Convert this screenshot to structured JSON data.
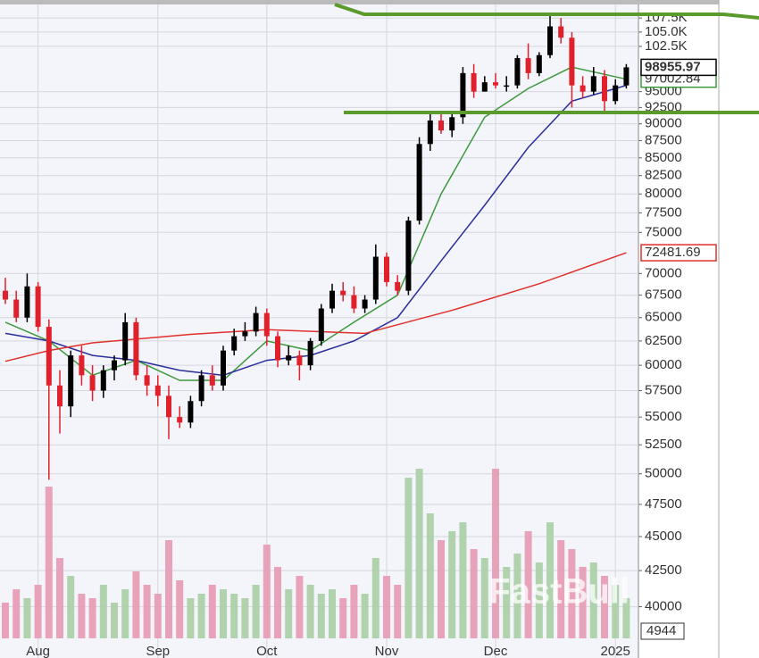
{
  "chart_data": {
    "type": "candlestick",
    "categories": [
      null,
      null,
      null,
      "Aug",
      null,
      null,
      null,
      null,
      null,
      null,
      null,
      null,
      null,
      null,
      "Sep",
      null,
      null,
      null,
      null,
      null,
      null,
      null,
      null,
      null,
      "Oct",
      null,
      null,
      null,
      null,
      null,
      null,
      null,
      null,
      null,
      null,
      "Nov",
      null,
      null,
      null,
      null,
      null,
      null,
      null,
      null,
      null,
      "Dec",
      null,
      null,
      null,
      null,
      null,
      null,
      null,
      null,
      null,
      null,
      "2025",
      null
    ],
    "open": [
      68000,
      67000,
      65000,
      68500,
      64000,
      58000,
      56000,
      61000,
      59000,
      57500,
      59500,
      60500,
      64500,
      59000,
      58000,
      57000,
      55000,
      54500,
      56500,
      59000,
      58000,
      61500,
      63000,
      63500,
      65500,
      63000,
      60500,
      61000,
      60000,
      62500,
      66000,
      68000,
      67500,
      66000,
      67000,
      72000,
      69000,
      68000,
      76500,
      87000,
      90500,
      89000,
      91000,
      98000,
      95000,
      96500,
      96000,
      96000,
      100500,
      98000,
      101000,
      106000,
      104000,
      96000,
      95000,
      97500,
      93500,
      96000
    ],
    "high": [
      69500,
      68000,
      70000,
      69000,
      64800,
      59500,
      61500,
      62000,
      60000,
      60000,
      61000,
      65500,
      65000,
      60000,
      59000,
      58000,
      56000,
      57000,
      59500,
      60000,
      62000,
      63800,
      64500,
      66200,
      66000,
      63500,
      62000,
      61500,
      62800,
      66500,
      68800,
      69000,
      68500,
      67500,
      73500,
      72500,
      69800,
      77000,
      88000,
      92000,
      91500,
      92000,
      99000,
      99500,
      97500,
      98000,
      97500,
      101000,
      103000,
      101500,
      108000,
      107500,
      105000,
      97500,
      99000,
      98500,
      97000,
      99500
    ],
    "low": [
      66500,
      64500,
      64500,
      63500,
      49500,
      53500,
      55000,
      58000,
      56500,
      56800,
      58500,
      60000,
      58500,
      57000,
      56000,
      53000,
      54000,
      54000,
      56000,
      57500,
      57500,
      61000,
      62500,
      63000,
      62000,
      59800,
      60000,
      58500,
      59500,
      62000,
      65500,
      66800,
      65500,
      65500,
      66500,
      68500,
      67500,
      67500,
      76000,
      86000,
      88500,
      88000,
      90000,
      94000,
      95000,
      95500,
      95000,
      95500,
      97000,
      97500,
      100500,
      103000,
      92500,
      94000,
      94500,
      91500,
      93000,
      95500
    ],
    "close": [
      67000,
      65000,
      68500,
      64000,
      58000,
      56000,
      61000,
      59000,
      57500,
      59500,
      60500,
      64500,
      59000,
      58000,
      57000,
      55000,
      54500,
      56500,
      59000,
      58000,
      61500,
      63000,
      63500,
      65500,
      63000,
      60500,
      61000,
      60000,
      62500,
      66000,
      68000,
      67500,
      66000,
      67000,
      72000,
      69000,
      68000,
      76500,
      87000,
      90500,
      89000,
      91000,
      98000,
      95000,
      96500,
      96000,
      96000,
      100500,
      98000,
      101000,
      106000,
      104000,
      96000,
      95000,
      97500,
      93500,
      96000,
      98955.97
    ],
    "volume": [
      40,
      55,
      45,
      60,
      170,
      90,
      70,
      50,
      45,
      60,
      40,
      55,
      75,
      60,
      50,
      110,
      65,
      45,
      50,
      60,
      55,
      50,
      45,
      60,
      105,
      80,
      55,
      70,
      60,
      50,
      55,
      45,
      60,
      50,
      90,
      70,
      60,
      180,
      190,
      140,
      110,
      120,
      130,
      100,
      90,
      190,
      80,
      95,
      120,
      85,
      130,
      110,
      100,
      80,
      85,
      70,
      60,
      45
    ],
    "volume_lim": [
      0,
      250
    ],
    "up_color": "#000000",
    "down_color": "#e0202a",
    "volume_up_color": "#a9cfa4",
    "volume_down_color": "#e79ab3",
    "series": [
      {
        "color": "#3c9a3c",
        "show_last_label": true,
        "x": [
          0,
          4,
          8,
          12,
          16,
          20,
          24,
          28,
          32,
          36,
          40,
          44,
          48,
          52,
          57
        ],
        "values": [
          64500,
          62500,
          59000,
          60500,
          58500,
          58500,
          62500,
          61500,
          64500,
          67500,
          80000,
          91000,
          95500,
          99000,
          97002.84
        ]
      },
      {
        "color": "#2b2f9c",
        "show_last_label": false,
        "x": [
          0,
          4,
          8,
          12,
          16,
          20,
          24,
          28,
          32,
          36,
          40,
          44,
          48,
          52,
          57
        ],
        "values": [
          63300,
          62500,
          61000,
          60500,
          59500,
          59000,
          60500,
          61000,
          62500,
          65000,
          71500,
          78500,
          86500,
          93500,
          96000
        ]
      },
      {
        "color": "#e0302a",
        "show_last_label": true,
        "x": [
          0,
          4,
          8,
          13,
          17,
          24,
          33,
          41,
          49,
          57
        ],
        "values": [
          60400,
          61500,
          62300,
          62800,
          63200,
          63700,
          63300,
          65800,
          68800,
          72481.69
        ]
      }
    ],
    "ylim": [
      36700,
      110800
    ],
    "log_scale": true,
    "grid": true,
    "yticks": [
      40000,
      42500,
      45000,
      47500,
      50000,
      52500,
      55000,
      57500,
      60000,
      62500,
      65000,
      67500,
      70000,
      75000,
      77500,
      80000,
      82500,
      85000,
      87500,
      90000,
      92500,
      95000,
      {
        "value": 102500,
        "label": "102.5K"
      },
      {
        "value": 105000,
        "label": "105.0K"
      },
      {
        "value": 107500,
        "label": "107.5K"
      }
    ],
    "volume_readout": "4944",
    "watermark": "FastBull"
  }
}
